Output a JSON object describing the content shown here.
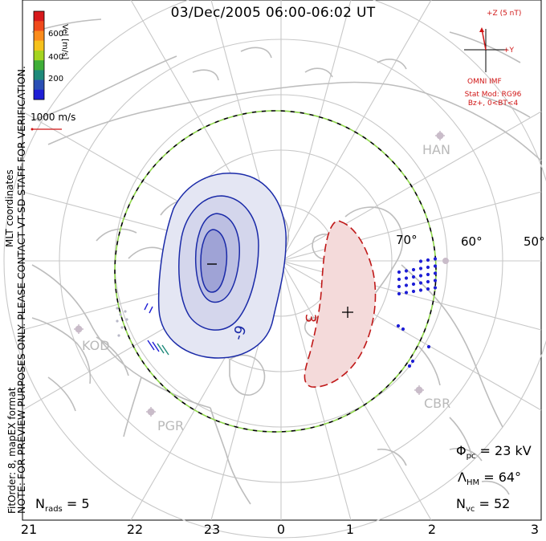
{
  "title": "03/Dec/2005 06:00-06:02 UT",
  "preview_note": "NOTE: FOR PREVIEW PURPOSES ONLY. PLEASE CONTACT VT-SD STAFF FOR VERIFICATION.",
  "fit_note": "FitOrder: 8, mapEX format",
  "coord_note": "MLT coordinates",
  "colorbar": {
    "label": "Vel [m/s]",
    "ticks": [
      "600",
      "400",
      "200"
    ],
    "colors": [
      "#d7191c",
      "#f04a1c",
      "#fb8c1c",
      "#f6c21c",
      "#a4d420",
      "#3fae38",
      "#1e8a7a",
      "#2a4fb5",
      "#1f1fd6"
    ]
  },
  "vector_scale": "1000 m/s",
  "mlt_labels": [
    "21",
    "22",
    "23",
    "0",
    "1",
    "2",
    "3"
  ],
  "lat_labels": [
    "70°",
    "60°",
    "50°"
  ],
  "stations": [
    "HAN",
    "KOD",
    "PGR",
    "CBR"
  ],
  "contours": {
    "negative_label": "-9",
    "positive_label": "3",
    "min_marker": "−",
    "max_marker": "+"
  },
  "imf": {
    "axis_z": "+Z (5 nT)",
    "axis_y": "+Y",
    "source": "OMNI IMF",
    "model_line1": "Stat Mod: RG96",
    "model_line2": "Bz+, 0<BT<4"
  },
  "stats": {
    "phi_pc_label": "Φ",
    "phi_pc_sub": "pc",
    "phi_pc_value": "= 23 kV",
    "lambda_label": "Λ",
    "lambda_sub": "HM",
    "lambda_value": "= 64°",
    "nvc_label": "N",
    "nvc_sub": "vc",
    "nvc_value": "= 52",
    "nrads_label": "N",
    "nrads_sub": "rads",
    "nrads_value": "= 5"
  },
  "colors": {
    "negative": "#1a2aa8",
    "positive": "#c01818",
    "grid": "#c8c8c8",
    "coast": "#bdbdbd",
    "boundary_green": "#8ed64a",
    "imf": "#d01515"
  }
}
